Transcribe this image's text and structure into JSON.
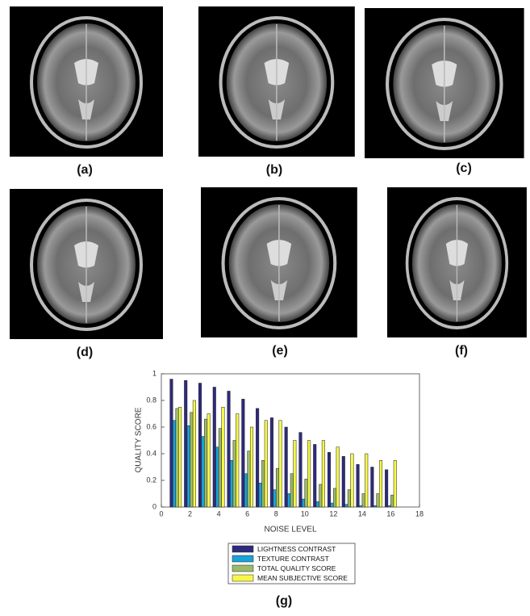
{
  "panels": [
    "(a)",
    "(b)",
    "(c)",
    "(d)",
    "(e)",
    "(f)"
  ],
  "caption": "(g)",
  "chart_data": {
    "type": "bar",
    "xlabel": "NOISE LEVEL",
    "ylabel": "QUALITY SCORE",
    "x": [
      1,
      2,
      3,
      4,
      5,
      6,
      7,
      8,
      9,
      10,
      11,
      12,
      13,
      14,
      15,
      16
    ],
    "xlim": [
      0,
      18
    ],
    "xticks": [
      0,
      2,
      4,
      6,
      8,
      10,
      12,
      14,
      16,
      18
    ],
    "ylim": [
      0,
      1
    ],
    "yticks": [
      0,
      0.2,
      0.4,
      0.6,
      0.8,
      1
    ],
    "series": [
      {
        "name": "LIGHTNESS CONTRAST",
        "color": "#2e2a7e",
        "values": [
          0.96,
          0.95,
          0.93,
          0.9,
          0.87,
          0.81,
          0.74,
          0.67,
          0.6,
          0.56,
          0.47,
          0.41,
          0.38,
          0.32,
          0.3,
          0.28
        ]
      },
      {
        "name": "TEXTURE CONTRAST",
        "color": "#1aa3d6",
        "values": [
          0.65,
          0.61,
          0.53,
          0.45,
          0.35,
          0.25,
          0.18,
          0.13,
          0.1,
          0.06,
          0.04,
          0.03,
          0.02,
          0.01,
          0.01,
          0.01
        ]
      },
      {
        "name": "TOTAL QUALITY SCORE",
        "color": "#9bbb6a",
        "values": [
          0.74,
          0.71,
          0.66,
          0.59,
          0.5,
          0.42,
          0.35,
          0.29,
          0.25,
          0.21,
          0.17,
          0.14,
          0.13,
          0.1,
          0.1,
          0.09
        ]
      },
      {
        "name": "MEAN SUBJECTIVE SCORE",
        "color": "#f7f74a",
        "values": [
          0.75,
          0.8,
          0.7,
          0.75,
          0.7,
          0.6,
          0.65,
          0.65,
          0.5,
          0.5,
          0.5,
          0.45,
          0.4,
          0.4,
          0.35,
          0.35
        ]
      }
    ]
  }
}
